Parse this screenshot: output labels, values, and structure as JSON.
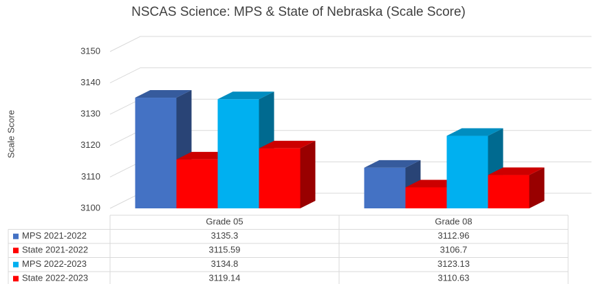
{
  "chart_data": {
    "type": "bar3d",
    "title": "NSCAS Science: MPS & State of Nebraska (Scale Score)",
    "y_label": "Scale Score",
    "categories": [
      "Grade 05",
      "Grade 08"
    ],
    "series": [
      {
        "name": "MPS 2021-2022",
        "color": "#4472c4",
        "values": [
          3135.3,
          3112.96
        ]
      },
      {
        "name": "State 2021-2022",
        "color": "#ff0000",
        "values": [
          3115.59,
          3106.7
        ]
      },
      {
        "name": "MPS 2022-2023",
        "color": "#00b0f0",
        "values": [
          3134.8,
          3123.13
        ]
      },
      {
        "name": "State 2022-2023",
        "color": "#ff0000",
        "values": [
          3119.14,
          3110.63
        ]
      }
    ],
    "ylim": [
      3100,
      3150
    ],
    "yticks": [
      3100,
      3110,
      3120,
      3130,
      3140,
      3150
    ],
    "grid": true,
    "data_table": true
  }
}
